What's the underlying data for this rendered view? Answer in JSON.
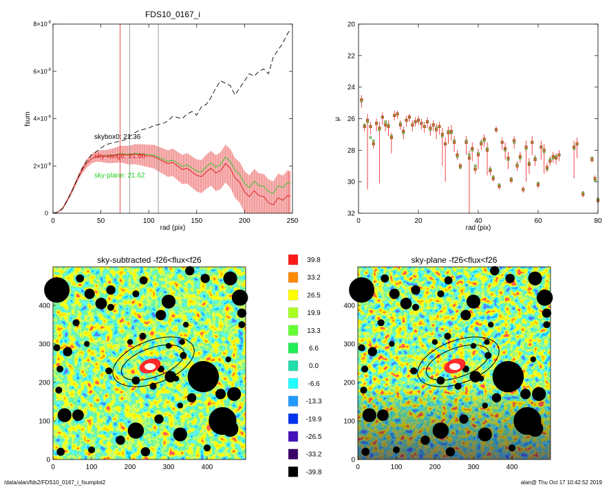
{
  "footer": {
    "path": "/data/alan/fds2/FDS10_0167_i_fsumplot2",
    "stamp": "alan@  Thu Oct 17 10:42:52 2019"
  },
  "colors": {
    "observed": "#dd2222",
    "error_band": "#f5a6a6",
    "sky_plane": "#1fc81f",
    "skybox": "#000000",
    "sky_range_text": "#dd2222",
    "sky_plane_text": "#22cc22"
  },
  "chart_data": [
    {
      "id": "growth-curve",
      "type": "line",
      "title": "FDS10_0167_i",
      "xlabel": "rad (pix)",
      "ylabel": "fsum",
      "xlim": [
        0,
        250
      ],
      "ylim": [
        0,
        8e-09
      ],
      "xticks": [
        0,
        50,
        100,
        150,
        200,
        250
      ],
      "xtick_labels": [
        "0",
        "50",
        "100",
        "150",
        "200",
        "250"
      ],
      "yticks": [
        0,
        2e-09,
        4e-09,
        6e-09,
        8e-09
      ],
      "ytick_labels": [
        {
          "base": "0",
          "exp": ""
        },
        {
          "base": "2×10",
          "exp": "-9"
        },
        {
          "base": "4×10",
          "exp": "-9"
        },
        {
          "base": "6×10",
          "exp": "-9"
        },
        {
          "base": "8×10",
          "exp": "-9"
        }
      ],
      "vlines": [
        {
          "x": 70,
          "color": "#dd2222"
        },
        {
          "x": 80,
          "color": "#888888"
        },
        {
          "x": 110,
          "color": "#888888"
        }
      ],
      "annotations": [
        {
          "text": "skybox0: 21.36",
          "color": "#000000"
        },
        {
          "text": "sky-range: 21.60",
          "color": "#dd2222"
        },
        {
          "text": "sky-plane: 21.62",
          "color": "#22cc22"
        }
      ],
      "series": [
        {
          "name": "skybox0",
          "style": "dashed",
          "x": [
            0,
            5,
            10,
            15,
            20,
            25,
            30,
            35,
            40,
            45,
            50,
            55,
            60,
            65,
            70,
            75,
            80,
            85,
            90,
            95,
            100,
            105,
            110,
            115,
            120,
            125,
            130,
            135,
            140,
            145,
            150,
            155,
            160,
            165,
            170,
            175,
            180,
            185,
            190,
            195,
            200,
            205,
            210,
            215,
            220,
            225,
            230,
            235,
            240,
            245,
            248
          ],
          "y": [
            0,
            5e-11,
            2e-10,
            5.5e-10,
            9.5e-10,
            1.4e-09,
            1.85e-09,
            2.2e-09,
            2.45e-09,
            2.6e-09,
            2.75e-09,
            2.9e-09,
            2.95e-09,
            3e-09,
            3.05e-09,
            3.1e-09,
            3.25e-09,
            3.4e-09,
            3.5e-09,
            3.55e-09,
            3.6e-09,
            3.7e-09,
            3.75e-09,
            3.8e-09,
            3.9e-09,
            4.1e-09,
            4.05e-09,
            4e-09,
            4.2e-09,
            4.3e-09,
            4.15e-09,
            4.5e-09,
            4.6e-09,
            4.9e-09,
            5.3e-09,
            5.6e-09,
            5.5e-09,
            5.4e-09,
            5e-09,
            5.3e-09,
            5.6e-09,
            5.9e-09,
            5.8e-09,
            6e-09,
            6.1e-09,
            5.9e-09,
            6.6e-09,
            6.9e-09,
            7.2e-09,
            7.6e-09,
            7.8e-09
          ]
        },
        {
          "name": "sky-range",
          "style": "solid",
          "x": [
            0,
            5,
            10,
            15,
            20,
            25,
            30,
            35,
            40,
            45,
            50,
            55,
            60,
            65,
            70,
            75,
            80,
            85,
            90,
            95,
            100,
            105,
            110,
            115,
            120,
            125,
            130,
            135,
            140,
            145,
            150,
            155,
            160,
            165,
            170,
            175,
            180,
            185,
            190,
            195,
            200,
            205,
            210,
            215,
            220,
            225,
            230,
            235,
            240,
            245,
            248
          ],
          "y": [
            0,
            5e-11,
            2e-10,
            5.5e-10,
            9.5e-10,
            1.4e-09,
            1.8e-09,
            2.1e-09,
            2.3e-09,
            2.4e-09,
            2.42e-09,
            2.4e-09,
            2.42e-09,
            2.45e-09,
            2.5e-09,
            2.48e-09,
            2.45e-09,
            2.5e-09,
            2.48e-09,
            2.45e-09,
            2.42e-09,
            2.4e-09,
            2.3e-09,
            2.2e-09,
            2.1e-09,
            2.15e-09,
            2e-09,
            1.85e-09,
            1.9e-09,
            1.75e-09,
            1.6e-09,
            1.55e-09,
            1.75e-09,
            1.9e-09,
            1.7e-09,
            1.8e-09,
            2.1e-09,
            1.9e-09,
            1.5e-09,
            1.3e-09,
            9e-10,
            7e-10,
            9.5e-10,
            7.5e-10,
            7e-10,
            4.5e-10,
            3.5e-10,
            6.5e-10,
            5.5e-10,
            7.5e-10,
            7e-10
          ],
          "err": [
            0,
            2e-11,
            5e-11,
            8e-11,
            1e-10,
            1.2e-10,
            1.5e-10,
            1.8e-10,
            2e-10,
            2.2e-10,
            2.5e-10,
            2.7e-10,
            3e-10,
            3.2e-10,
            3.5e-10,
            3.7e-10,
            4e-10,
            4.2e-10,
            4.4e-10,
            4.6e-10,
            4.8e-10,
            5e-10,
            5.2e-10,
            5.4e-10,
            5.6e-10,
            5.8e-10,
            6e-10,
            6.2e-10,
            6.4e-10,
            6.6e-10,
            6.8e-10,
            7e-10,
            7.2e-10,
            7.4e-10,
            7.6e-10,
            7.8e-10,
            8e-10,
            8.2e-10,
            8.4e-10,
            8.6e-10,
            8.8e-10,
            9e-10,
            9.2e-10,
            9.4e-10,
            9.6e-10,
            9.8e-10,
            1e-09,
            1.02e-09,
            1.04e-09,
            1.06e-09,
            1.07e-09
          ]
        },
        {
          "name": "sky-plane",
          "style": "solid",
          "x": [
            0,
            5,
            10,
            15,
            20,
            25,
            30,
            35,
            40,
            45,
            50,
            55,
            60,
            65,
            70,
            75,
            80,
            85,
            90,
            95,
            100,
            105,
            110,
            115,
            120,
            125,
            130,
            135,
            140,
            145,
            150,
            155,
            160,
            165,
            170,
            175,
            180,
            185,
            190,
            195,
            200,
            205,
            210,
            215,
            220,
            225,
            230,
            235,
            240,
            245,
            248
          ],
          "y": [
            0,
            5e-11,
            2e-10,
            5.5e-10,
            9.5e-10,
            1.4e-09,
            1.8e-09,
            2.1e-09,
            2.3e-09,
            2.4e-09,
            2.43e-09,
            2.42e-09,
            2.44e-09,
            2.47e-09,
            2.52e-09,
            2.5e-09,
            2.48e-09,
            2.53e-09,
            2.52e-09,
            2.5e-09,
            2.47e-09,
            2.46e-09,
            2.37e-09,
            2.28e-09,
            2.2e-09,
            2.25e-09,
            2.12e-09,
            1.98e-09,
            2.05e-09,
            1.92e-09,
            1.78e-09,
            1.75e-09,
            1.97e-09,
            2.13e-09,
            1.95e-09,
            2.06e-09,
            2.38e-09,
            2.2e-09,
            1.82e-09,
            1.64e-09,
            1.26e-09,
            1.08e-09,
            1.35e-09,
            1.17e-09,
            1.14e-09,
            9.2e-10,
            8.4e-10,
            1.16e-09,
            1.08e-09,
            1.3e-09,
            1.27e-09
          ]
        }
      ]
    },
    {
      "id": "surface-brightness",
      "type": "scatter",
      "title": "",
      "xlabel": "rad (pix)",
      "ylabel": "μ",
      "xlim": [
        0,
        80
      ],
      "ylim": [
        32,
        20
      ],
      "xticks": [
        0,
        20,
        40,
        60,
        80
      ],
      "xtick_labels": [
        "0",
        "20",
        "40",
        "60",
        "80"
      ],
      "yticks": [
        20,
        22,
        24,
        26,
        28,
        30,
        32
      ],
      "ytick_labels": [
        "20",
        "22",
        "24",
        "26",
        "28",
        "30",
        "32"
      ],
      "points": [
        {
          "x": 1,
          "y": 24.8,
          "lo": 24.5,
          "hi": 25.3,
          "g": 24.9
        },
        {
          "x": 2,
          "y": 26.5,
          "lo": 26.3,
          "hi": 26.8,
          "g": 26.4
        },
        {
          "x": 3,
          "y": 26.1,
          "lo": 25.7,
          "hi": 30.5,
          "g": 26.2
        },
        {
          "x": 4,
          "y": 26.5,
          "lo": 26.2,
          "hi": 27.0,
          "g": 27.2
        },
        {
          "x": 5,
          "y": 27.6,
          "lo": 27.4,
          "hi": 27.9,
          "g": 27.4
        },
        {
          "x": 6,
          "y": 26.3,
          "lo": 26.0,
          "hi": 26.8,
          "g": 26.3
        },
        {
          "x": 7,
          "y": 26.6,
          "lo": 26.2,
          "hi": 30.1,
          "g": 26.7
        },
        {
          "x": 8,
          "y": 25.9,
          "lo": 25.6,
          "hi": 26.4,
          "g": 25.9
        },
        {
          "x": 9,
          "y": 26.4,
          "lo": 26.1,
          "hi": 26.8,
          "g": 26.2
        },
        {
          "x": 10,
          "y": 26.5,
          "lo": 26.1,
          "hi": 27.1,
          "g": 26.4
        },
        {
          "x": 11,
          "y": 27.2,
          "lo": 26.9,
          "hi": 28.2,
          "g": 27.1
        },
        {
          "x": 12,
          "y": 25.8,
          "lo": 25.5,
          "hi": 26.1,
          "g": 25.8
        },
        {
          "x": 13,
          "y": 25.7,
          "lo": 25.5,
          "hi": 26.0,
          "g": 25.7
        },
        {
          "x": 14,
          "y": 26.4,
          "lo": 26.1,
          "hi": 26.7,
          "g": 26.3
        },
        {
          "x": 15,
          "y": 26.8,
          "lo": 26.5,
          "hi": 27.3,
          "g": 26.9
        },
        {
          "x": 16,
          "y": 26.1,
          "lo": 25.8,
          "hi": 26.5,
          "g": 26.1
        },
        {
          "x": 17,
          "y": 25.9,
          "lo": 25.7,
          "hi": 26.2,
          "g": 25.9
        },
        {
          "x": 18,
          "y": 26.4,
          "lo": 26.1,
          "hi": 26.8,
          "g": 26.4
        },
        {
          "x": 19,
          "y": 26.2,
          "lo": 25.9,
          "hi": 26.5,
          "g": 26.2
        },
        {
          "x": 20,
          "y": 26.1,
          "lo": 25.8,
          "hi": 26.4,
          "g": 26.1
        },
        {
          "x": 21,
          "y": 26.3,
          "lo": 26.0,
          "hi": 26.7,
          "g": 26.3
        },
        {
          "x": 22,
          "y": 26.5,
          "lo": 26.2,
          "hi": 26.9,
          "g": 26.5
        },
        {
          "x": 23,
          "y": 26.2,
          "lo": 25.9,
          "hi": 26.6,
          "g": 26.2
        },
        {
          "x": 24,
          "y": 26.6,
          "lo": 26.3,
          "hi": 27.1,
          "g": 26.7
        },
        {
          "x": 25,
          "y": 26.4,
          "lo": 26.1,
          "hi": 26.8,
          "g": 26.4
        },
        {
          "x": 26,
          "y": 26.7,
          "lo": 26.3,
          "hi": 27.3,
          "g": 26.6
        },
        {
          "x": 27,
          "y": 26.5,
          "lo": 26.2,
          "hi": 27.0,
          "g": 26.5
        },
        {
          "x": 28,
          "y": 27.0,
          "lo": 26.6,
          "hi": 29.0,
          "g": 27.1
        },
        {
          "x": 29,
          "y": 27.6,
          "lo": 27.2,
          "hi": 30.0,
          "g": 27.6
        },
        {
          "x": 30,
          "y": 26.9,
          "lo": 26.5,
          "hi": 27.6,
          "g": 26.8
        },
        {
          "x": 31,
          "y": 26.8,
          "lo": 26.4,
          "hi": 27.4,
          "g": 26.9
        },
        {
          "x": 32,
          "y": 27.5,
          "lo": 27.1,
          "hi": 28.1,
          "g": 27.4
        },
        {
          "x": 33,
          "y": 28.3,
          "lo": 28.0,
          "hi": 28.6,
          "g": 28.4
        },
        {
          "x": 34,
          "y": 29.0,
          "lo": 28.8,
          "hi": 29.2,
          "g": 29.1
        },
        {
          "x": 36,
          "y": 27.5,
          "lo": 27.1,
          "hi": 28.3,
          "g": 27.4
        },
        {
          "x": 37,
          "y": 28.5,
          "lo": 28.0,
          "hi": 32.0,
          "g": 28.3
        },
        {
          "x": 38,
          "y": 27.9,
          "lo": 27.5,
          "hi": 28.7,
          "g": 28.0
        },
        {
          "x": 39,
          "y": 29.2,
          "lo": 28.9,
          "hi": 29.5,
          "g": 29.0
        },
        {
          "x": 40,
          "y": 28.3,
          "lo": 27.9,
          "hi": 29.2,
          "g": 28.2
        },
        {
          "x": 41,
          "y": 27.6,
          "lo": 27.3,
          "hi": 28.0,
          "g": 27.5
        },
        {
          "x": 42,
          "y": 27.3,
          "lo": 27.0,
          "hi": 27.8,
          "g": 27.4
        },
        {
          "x": 43,
          "y": 28.0,
          "lo": 27.5,
          "hi": 29.6,
          "g": 27.9
        },
        {
          "x": 44,
          "y": 29.3,
          "lo": 29.0,
          "hi": 29.6,
          "g": 29.2
        },
        {
          "x": 45,
          "y": 29.8,
          "lo": 29.6,
          "hi": 30.0,
          "g": 29.7
        },
        {
          "x": 46,
          "y": 26.7,
          "lo": 26.5,
          "hi": 26.9,
          "g": 26.7
        },
        {
          "x": 47,
          "y": 30.3,
          "lo": 30.1,
          "hi": 30.5,
          "g": 30.2
        },
        {
          "x": 48,
          "y": 27.5,
          "lo": 27.2,
          "hi": 28.0,
          "g": 27.5
        },
        {
          "x": 49,
          "y": 27.9,
          "lo": 27.5,
          "hi": 28.6,
          "g": 28.0
        },
        {
          "x": 50,
          "y": 28.5,
          "lo": 28.1,
          "hi": 29.2,
          "g": 28.6
        },
        {
          "x": 51,
          "y": 29.9,
          "lo": 29.7,
          "hi": 30.1,
          "g": 29.8
        },
        {
          "x": 52,
          "y": 27.4,
          "lo": 27.1,
          "hi": 27.9,
          "g": 27.5
        },
        {
          "x": 53,
          "y": 29.0,
          "lo": 28.7,
          "hi": 29.3,
          "g": 28.9
        },
        {
          "x": 54,
          "y": 28.4,
          "lo": 28.1,
          "hi": 28.8,
          "g": 28.5
        },
        {
          "x": 55,
          "y": 30.5,
          "lo": 30.3,
          "hi": 30.7,
          "g": 30.5
        },
        {
          "x": 56,
          "y": 27.8,
          "lo": 27.4,
          "hi": 30.0,
          "g": 27.9
        },
        {
          "x": 57,
          "y": 28.9,
          "lo": 28.5,
          "hi": 29.5,
          "g": 28.8
        },
        {
          "x": 58,
          "y": 27.5,
          "lo": 27.1,
          "hi": 28.3,
          "g": 27.5
        },
        {
          "x": 59,
          "y": 28.6,
          "lo": 28.3,
          "hi": 29.0,
          "g": 28.5
        },
        {
          "x": 60,
          "y": 30.2,
          "lo": 30.0,
          "hi": 30.4,
          "g": 30.1
        },
        {
          "x": 61,
          "y": 27.8,
          "lo": 27.4,
          "hi": 28.6,
          "g": 27.8
        },
        {
          "x": 62,
          "y": 28.0,
          "lo": 27.6,
          "hi": 29.5,
          "g": 28.1
        },
        {
          "x": 63,
          "y": 29.1,
          "lo": 28.8,
          "hi": 29.4,
          "g": 29.2
        },
        {
          "x": 64,
          "y": 28.7,
          "lo": 28.4,
          "hi": 29.0,
          "g": 28.6
        },
        {
          "x": 65,
          "y": 28.4,
          "lo": 28.1,
          "hi": 28.8,
          "g": 28.5
        },
        {
          "x": 66,
          "y": 28.5,
          "lo": 28.2,
          "hi": 28.9,
          "g": 28.4
        },
        {
          "x": 67,
          "y": 28.3,
          "lo": 28.0,
          "hi": 28.7,
          "g": 28.3
        },
        {
          "x": 72,
          "y": 27.8,
          "lo": 27.4,
          "hi": 29.8,
          "g": 27.9
        },
        {
          "x": 73,
          "y": 27.6,
          "lo": 27.2,
          "hi": 28.5,
          "g": 27.6
        },
        {
          "x": 75,
          "y": 30.8,
          "lo": 30.6,
          "hi": 31.0,
          "g": 30.7
        },
        {
          "x": 78,
          "y": 28.6,
          "lo": 28.4,
          "hi": 28.8,
          "g": 28.5
        },
        {
          "x": 79,
          "y": 29.8,
          "lo": 29.6,
          "hi": 30.0,
          "g": 29.9
        },
        {
          "x": 80,
          "y": 31.2,
          "lo": 31.0,
          "hi": 31.4,
          "g": 31.1
        }
      ]
    },
    {
      "id": "sky-subtracted-map",
      "type": "heatmap",
      "title": "sky-subtracted -f26<flux<f26",
      "xlim": [
        0,
        500
      ],
      "ylim": [
        0,
        500
      ],
      "xticks": [
        0,
        100,
        200,
        300,
        400
      ],
      "yticks": [
        0,
        100,
        200,
        300,
        400
      ]
    },
    {
      "id": "sky-plane-map",
      "type": "heatmap",
      "title": "sky-plane -f26<flux<f26",
      "xlim": [
        0,
        500
      ],
      "ylim": [
        0,
        500
      ],
      "xticks": [
        0,
        100,
        200,
        300,
        400
      ],
      "yticks": [
        0,
        100,
        200,
        300,
        400
      ]
    }
  ],
  "colorbar": {
    "labels": [
      "39.8",
      "33.2",
      "26.5",
      "19.9",
      "13.3",
      "6.6",
      "0.0",
      "-6.6",
      "-13.3",
      "-19.9",
      "-26.5",
      "-33.2",
      "-39.8"
    ],
    "colors": [
      "#ff1a1a",
      "#ff8800",
      "#ffff00",
      "#aaff22",
      "#66ff33",
      "#22ee55",
      "#22ddaa",
      "#22ffff",
      "#2299ff",
      "#0033ee",
      "#4411bb",
      "#3a0066",
      "#000000"
    ]
  }
}
